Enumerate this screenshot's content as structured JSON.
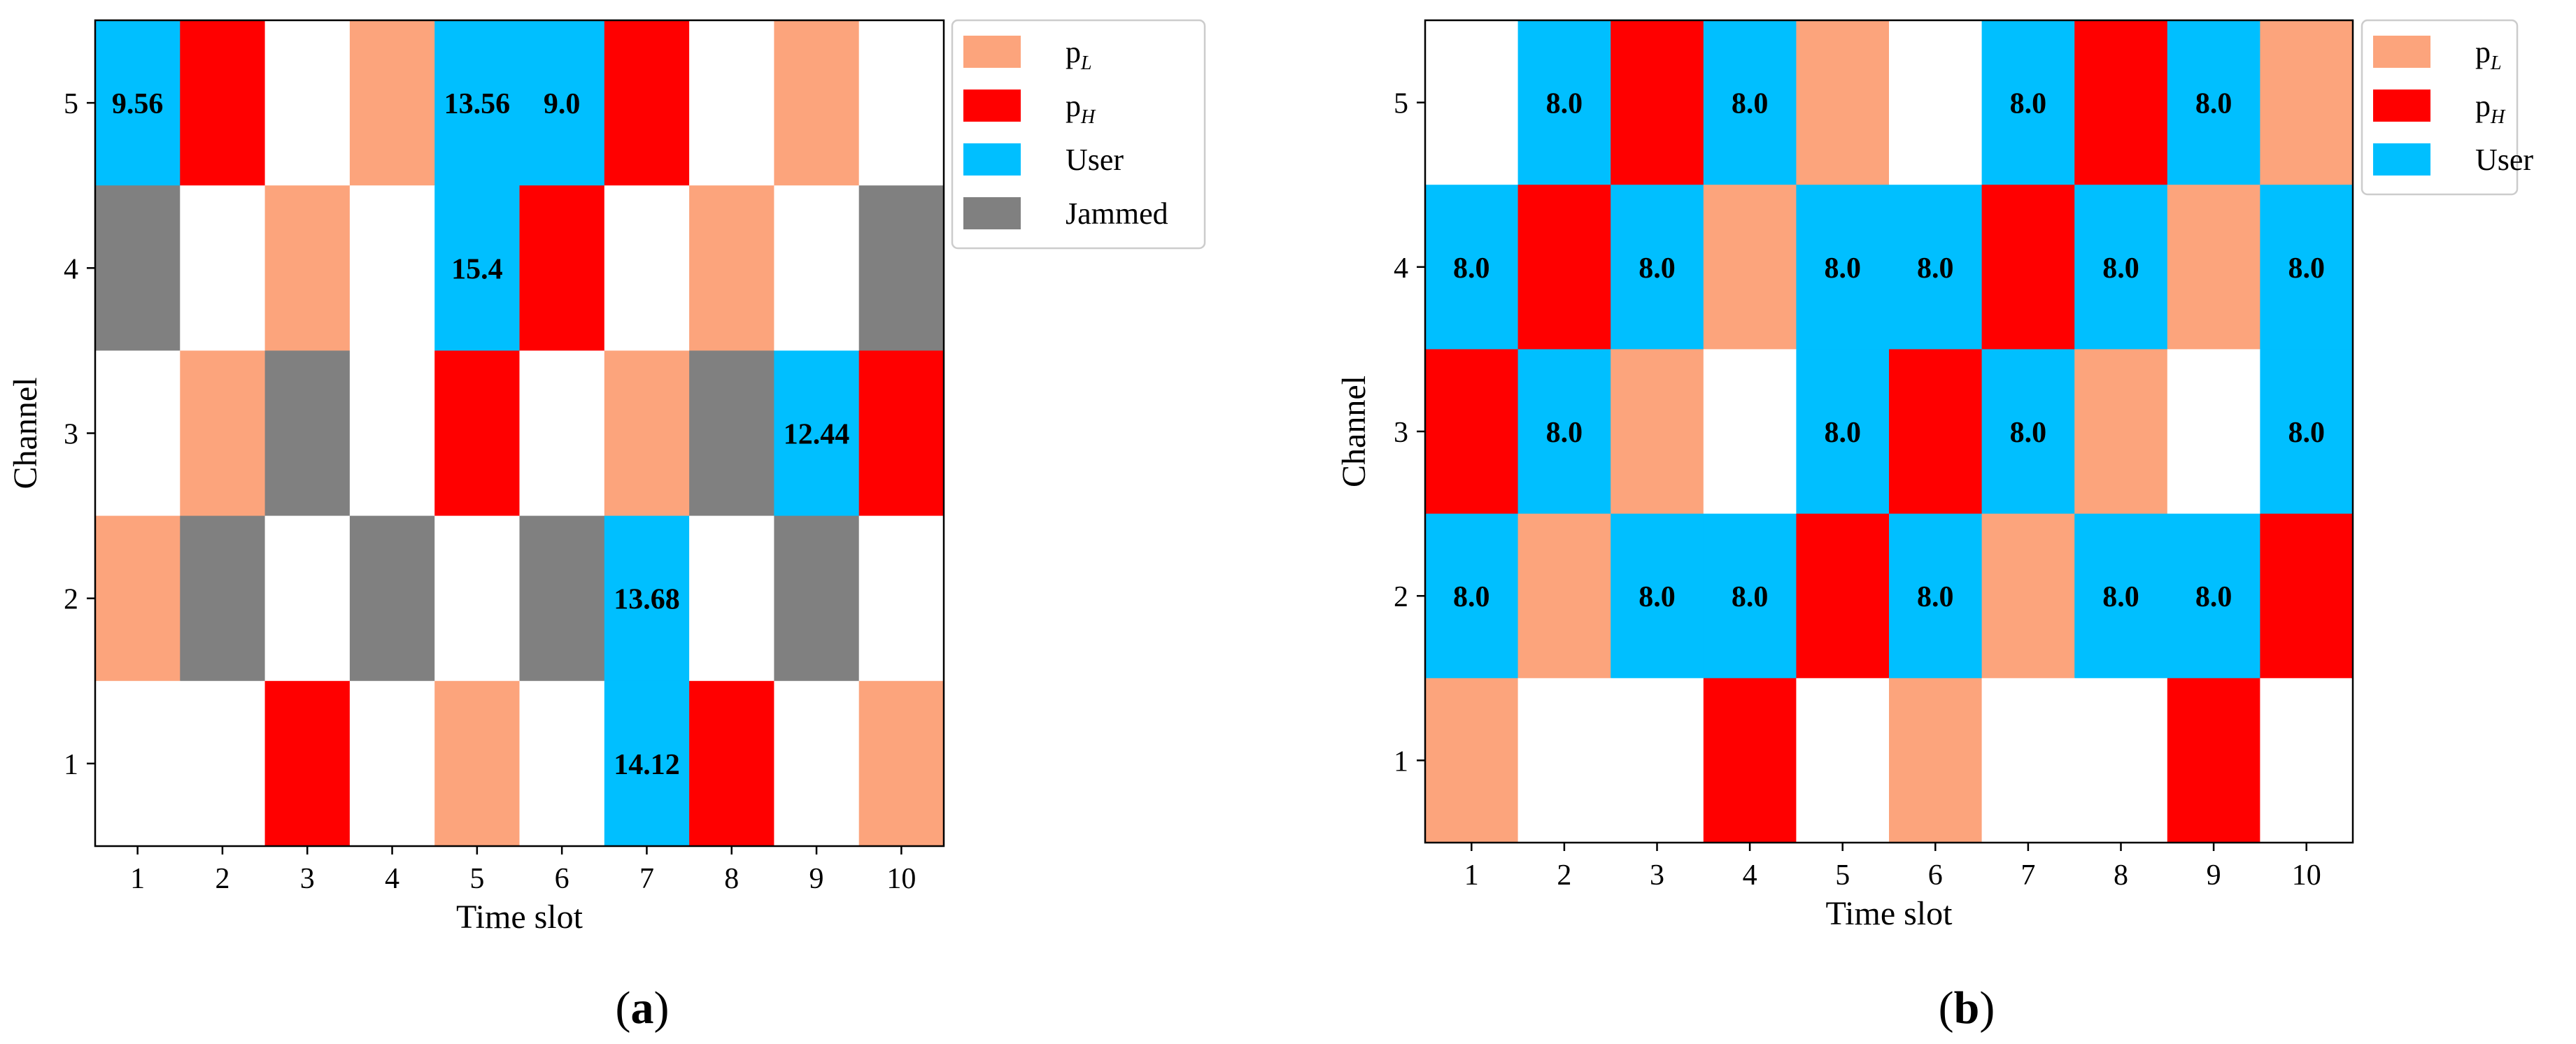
{
  "colors": {
    "pL": "#FCA47C",
    "pH": "#FF0000",
    "user": "#00BFFF",
    "jammed": "#808080",
    "empty": "#FFFFFF"
  },
  "chart_data": [
    {
      "type": "heatmap",
      "panel_label": "(a)",
      "panel_letter": "a",
      "xlabel": "Time slot",
      "ylabel": "Channel",
      "x": [
        1,
        2,
        3,
        4,
        5,
        6,
        7,
        8,
        9,
        10
      ],
      "y": [
        1,
        2,
        3,
        4,
        5
      ],
      "legend": [
        {
          "key": "pL",
          "base": "p",
          "sub": "L"
        },
        {
          "key": "pH",
          "base": "p",
          "sub": "H"
        },
        {
          "key": "user",
          "base": "User",
          "sub": ""
        },
        {
          "key": "jammed",
          "base": "Jammed",
          "sub": ""
        }
      ],
      "grid_top_to_bottom": [
        [
          "user",
          "pH",
          "empty",
          "pL",
          "user",
          "user",
          "pH",
          "empty",
          "pL",
          "empty"
        ],
        [
          "jammed",
          "empty",
          "pL",
          "empty",
          "user",
          "pH",
          "empty",
          "pL",
          "empty",
          "jammed"
        ],
        [
          "empty",
          "pL",
          "jammed",
          "empty",
          "pH",
          "empty",
          "pL",
          "jammed",
          "user",
          "pH"
        ],
        [
          "pL",
          "jammed",
          "empty",
          "jammed",
          "empty",
          "jammed",
          "user",
          "empty",
          "jammed",
          "empty"
        ],
        [
          "empty",
          "empty",
          "pH",
          "empty",
          "pL",
          "empty",
          "user",
          "pH",
          "empty",
          "pL"
        ]
      ],
      "annotations": [
        {
          "slot": 1,
          "channel": 5,
          "text": "9.56"
        },
        {
          "slot": 5,
          "channel": 5,
          "text": "13.56"
        },
        {
          "slot": 6,
          "channel": 5,
          "text": "9.0"
        },
        {
          "slot": 5,
          "channel": 4,
          "text": "15.4"
        },
        {
          "slot": 9,
          "channel": 3,
          "text": "12.44"
        },
        {
          "slot": 7,
          "channel": 2,
          "text": "13.68"
        },
        {
          "slot": 7,
          "channel": 1,
          "text": "14.12"
        }
      ]
    },
    {
      "type": "heatmap",
      "panel_label": "(b)",
      "panel_letter": "b",
      "xlabel": "Time slot",
      "ylabel": "Channel",
      "x": [
        1,
        2,
        3,
        4,
        5,
        6,
        7,
        8,
        9,
        10
      ],
      "y": [
        1,
        2,
        3,
        4,
        5
      ],
      "legend": [
        {
          "key": "pL",
          "base": "p",
          "sub": "L"
        },
        {
          "key": "pH",
          "base": "p",
          "sub": "H"
        },
        {
          "key": "user",
          "base": "User",
          "sub": ""
        }
      ],
      "grid_top_to_bottom": [
        [
          "empty",
          "user",
          "pH",
          "user",
          "pL",
          "empty",
          "user",
          "pH",
          "user",
          "pL"
        ],
        [
          "user",
          "pH",
          "user",
          "pL",
          "user",
          "user",
          "pH",
          "user",
          "pL",
          "user"
        ],
        [
          "pH",
          "user",
          "pL",
          "empty",
          "user",
          "pH",
          "user",
          "pL",
          "empty",
          "user"
        ],
        [
          "user",
          "pL",
          "user",
          "user",
          "pH",
          "user",
          "pL",
          "user",
          "user",
          "pH"
        ],
        [
          "pL",
          "empty",
          "empty",
          "pH",
          "empty",
          "pL",
          "empty",
          "empty",
          "pH",
          "empty"
        ]
      ],
      "annotations": [
        {
          "slot": 2,
          "channel": 5,
          "text": "8.0"
        },
        {
          "slot": 4,
          "channel": 5,
          "text": "8.0"
        },
        {
          "slot": 7,
          "channel": 5,
          "text": "8.0"
        },
        {
          "slot": 9,
          "channel": 5,
          "text": "8.0"
        },
        {
          "slot": 1,
          "channel": 4,
          "text": "8.0"
        },
        {
          "slot": 3,
          "channel": 4,
          "text": "8.0"
        },
        {
          "slot": 5,
          "channel": 4,
          "text": "8.0"
        },
        {
          "slot": 6,
          "channel": 4,
          "text": "8.0"
        },
        {
          "slot": 8,
          "channel": 4,
          "text": "8.0"
        },
        {
          "slot": 10,
          "channel": 4,
          "text": "8.0"
        },
        {
          "slot": 2,
          "channel": 3,
          "text": "8.0"
        },
        {
          "slot": 5,
          "channel": 3,
          "text": "8.0"
        },
        {
          "slot": 7,
          "channel": 3,
          "text": "8.0"
        },
        {
          "slot": 10,
          "channel": 3,
          "text": "8.0"
        },
        {
          "slot": 1,
          "channel": 2,
          "text": "8.0"
        },
        {
          "slot": 3,
          "channel": 2,
          "text": "8.0"
        },
        {
          "slot": 4,
          "channel": 2,
          "text": "8.0"
        },
        {
          "slot": 6,
          "channel": 2,
          "text": "8.0"
        },
        {
          "slot": 8,
          "channel": 2,
          "text": "8.0"
        },
        {
          "slot": 9,
          "channel": 2,
          "text": "8.0"
        }
      ]
    }
  ]
}
